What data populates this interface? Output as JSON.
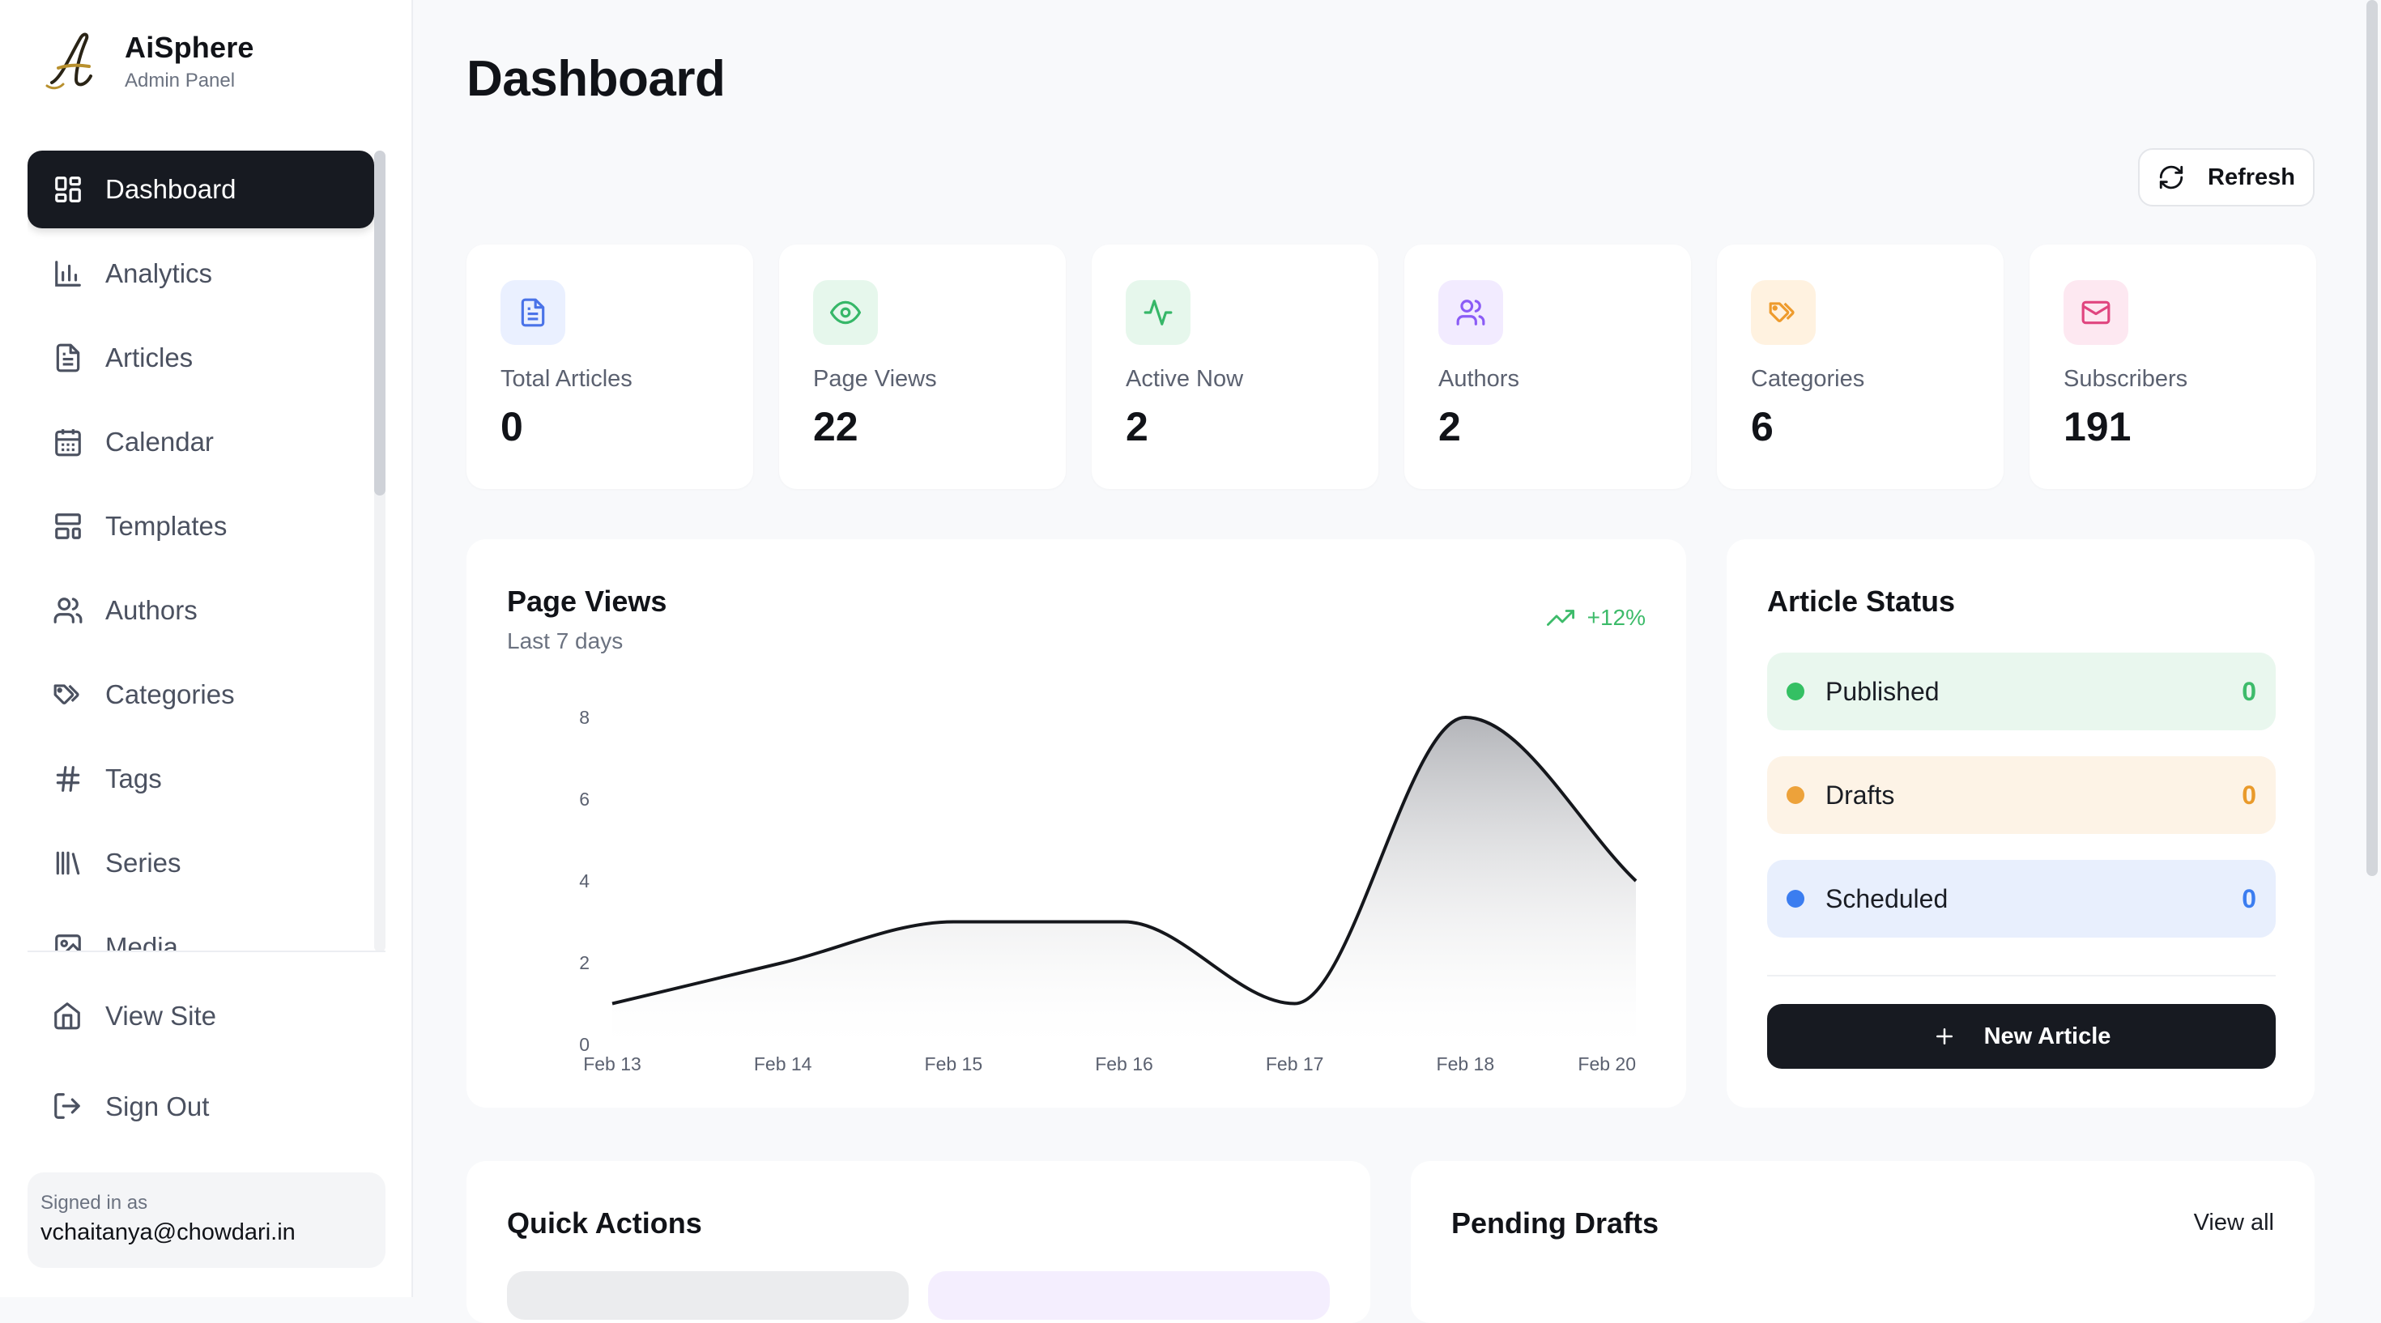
{
  "app": {
    "name": "AiSphere",
    "subtitle": "Admin Panel"
  },
  "sidebar": {
    "items": [
      {
        "label": "Dashboard",
        "icon": "dashboard-icon",
        "active": true
      },
      {
        "label": "Analytics",
        "icon": "bar-chart-icon"
      },
      {
        "label": "Articles",
        "icon": "document-icon"
      },
      {
        "label": "Calendar",
        "icon": "calendar-icon"
      },
      {
        "label": "Templates",
        "icon": "template-icon"
      },
      {
        "label": "Authors",
        "icon": "users-icon"
      },
      {
        "label": "Categories",
        "icon": "tags-icon"
      },
      {
        "label": "Tags",
        "icon": "hash-icon"
      },
      {
        "label": "Series",
        "icon": "library-icon"
      },
      {
        "label": "Media",
        "icon": "image-icon"
      }
    ],
    "bottom": {
      "view_site": "View Site",
      "sign_out": "Sign Out"
    },
    "signed_in": {
      "label": "Signed in as",
      "email": "vchaitanya@chowdari.in"
    }
  },
  "header": {
    "title": "Dashboard",
    "refresh_label": "Refresh"
  },
  "stats": [
    {
      "label": "Total Articles",
      "value": "0",
      "icon": "document-icon",
      "bg": "#eaf0ff",
      "fg": "#4a73e8"
    },
    {
      "label": "Page Views",
      "value": "22",
      "icon": "eye-icon",
      "bg": "#e6f7ec",
      "fg": "#36b768"
    },
    {
      "label": "Active Now",
      "value": "2",
      "icon": "activity-icon",
      "bg": "#e6f7ec",
      "fg": "#36b768"
    },
    {
      "label": "Authors",
      "value": "2",
      "icon": "users-icon",
      "bg": "#f2ebff",
      "fg": "#8b5cf6"
    },
    {
      "label": "Categories",
      "value": "6",
      "icon": "tags-icon",
      "bg": "#fff2e0",
      "fg": "#ee9b2d"
    },
    {
      "label": "Subscribers",
      "value": "191",
      "icon": "mail-icon",
      "bg": "#fde8f1",
      "fg": "#e0457f"
    }
  ],
  "page_views": {
    "title": "Page Views",
    "subtitle": "Last 7 days",
    "trend": "+12%",
    "trend_color": "#3dbb6a"
  },
  "chart_data": {
    "type": "area",
    "categories": [
      "Feb 13",
      "Feb 14",
      "Feb 15",
      "Feb 16",
      "Feb 17",
      "Feb 18",
      "Feb 20"
    ],
    "values": [
      1,
      2,
      3,
      3,
      1,
      8,
      4
    ],
    "yticks": [
      "0",
      "2",
      "4",
      "6",
      "8"
    ],
    "ylim": [
      0,
      8
    ],
    "grid": false
  },
  "article_status": {
    "title": "Article Status",
    "rows": [
      {
        "label": "Published",
        "count": "0",
        "dot": "#34c063",
        "bg": "#e9f7ee",
        "count_color": "#3dbb6a"
      },
      {
        "label": "Drafts",
        "count": "0",
        "dot": "#eda23a",
        "bg": "#fdf3e6",
        "count_color": "#e99a2b"
      },
      {
        "label": "Scheduled",
        "count": "0",
        "dot": "#3b7df0",
        "bg": "#e8effd",
        "count_color": "#3b7df0"
      }
    ],
    "new_article_label": "New Article"
  },
  "quick_actions": {
    "title": "Quick Actions"
  },
  "pending_drafts": {
    "title": "Pending Drafts",
    "view_all": "View all"
  }
}
